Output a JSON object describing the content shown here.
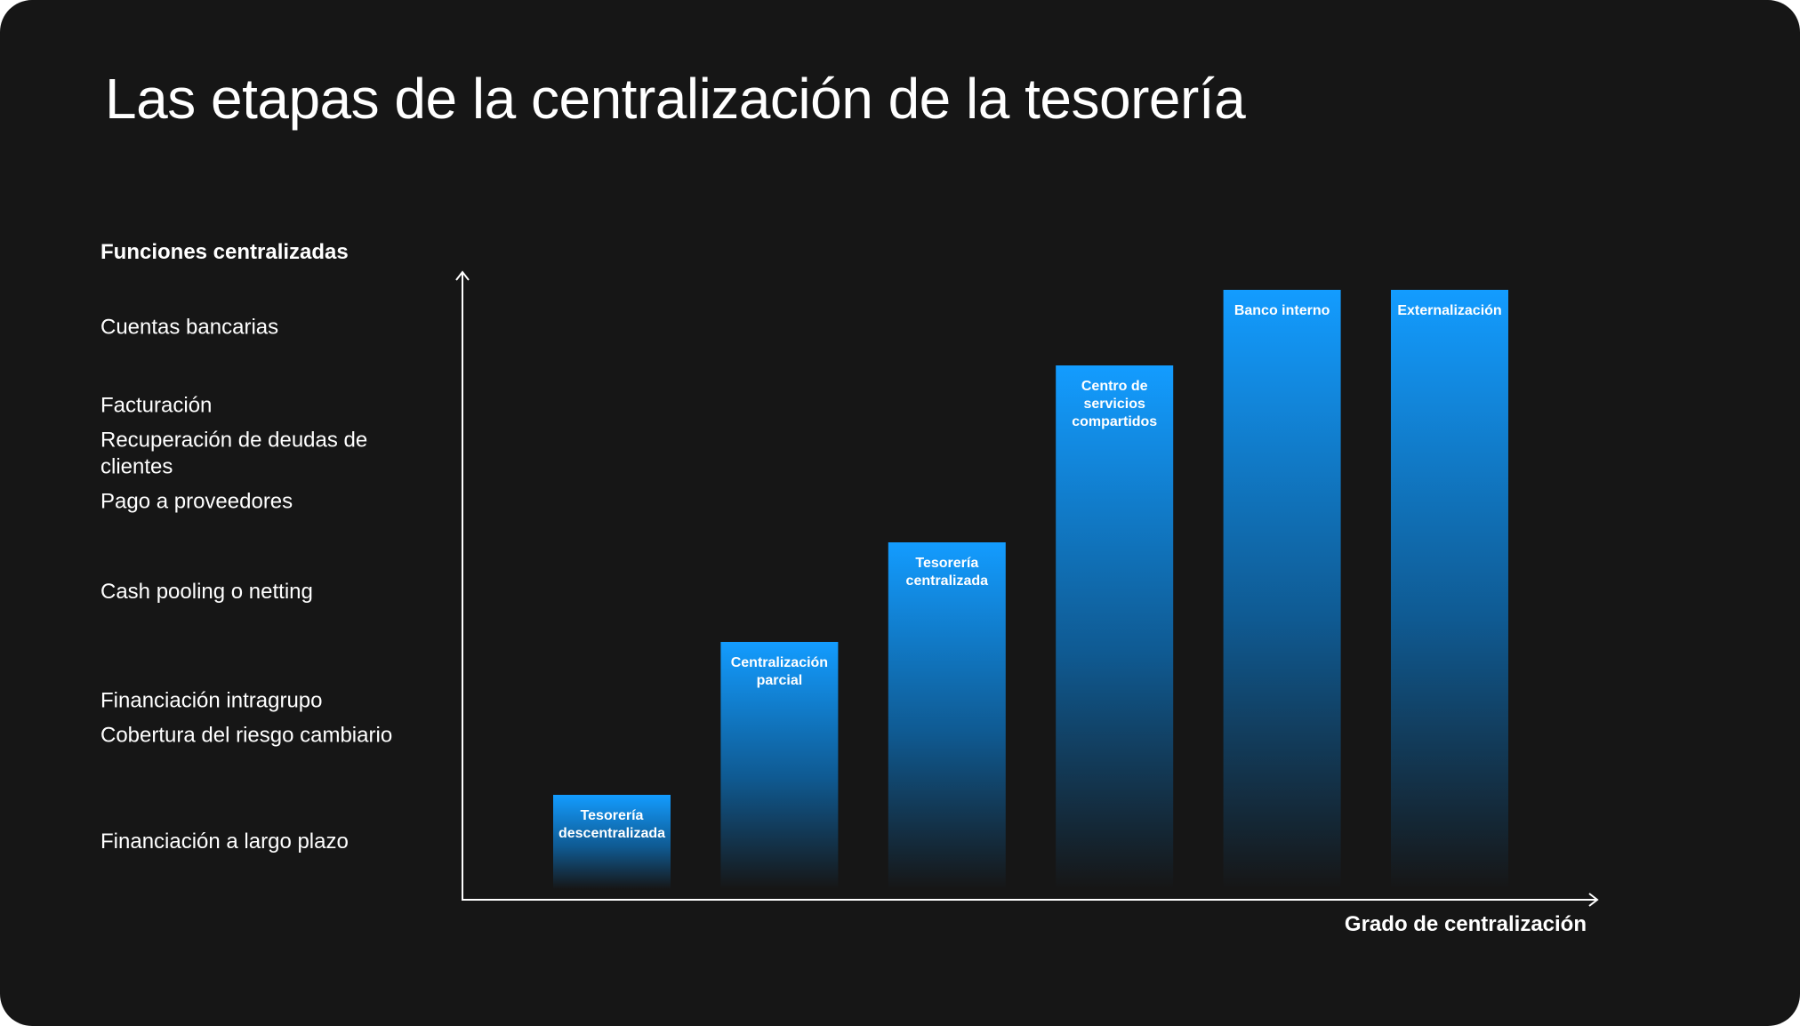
{
  "title": "Las etapas de la centralización de la tesorería",
  "chart_data": {
    "type": "bar",
    "title": "Las etapas de la centralización de la tesorería",
    "ylabel": "Funciones centralizadas",
    "xlabel": "Grado de centralización",
    "ylim": [
      0,
      6
    ],
    "categories": [
      [
        "Tesorería",
        "descentralizada"
      ],
      [
        "Centralización",
        "parcial"
      ],
      [
        "Tesorería",
        "centralizada"
      ],
      [
        "Centro de",
        "servicios",
        "compartidos"
      ],
      [
        "Banco interno"
      ],
      [
        "Externalización"
      ]
    ],
    "values": [
      1,
      2,
      3,
      4,
      5,
      5
    ],
    "function_levels": [
      {
        "level": 1,
        "items": [
          [
            "Financiación a largo plazo"
          ]
        ]
      },
      {
        "level": 2,
        "items": [
          [
            "Financiación intragrupo"
          ],
          [
            "Cobertura del riesgo cambiario"
          ]
        ]
      },
      {
        "level": 3,
        "items": [
          [
            "Cash pooling o netting"
          ]
        ]
      },
      {
        "level": 4,
        "items": [
          [
            "Facturación"
          ],
          [
            "Recuperación de deudas de",
            "clientes"
          ],
          [
            "Pago a proveedores"
          ]
        ]
      },
      {
        "level": 5,
        "items": [
          [
            "Cuentas bancarias"
          ]
        ]
      }
    ],
    "grid": true
  },
  "colors": {
    "background": "#161616",
    "bar_top": "#139cff",
    "bar_bottom": "#161616",
    "axis": "#ffffff",
    "grid": "#6a6a6a"
  }
}
